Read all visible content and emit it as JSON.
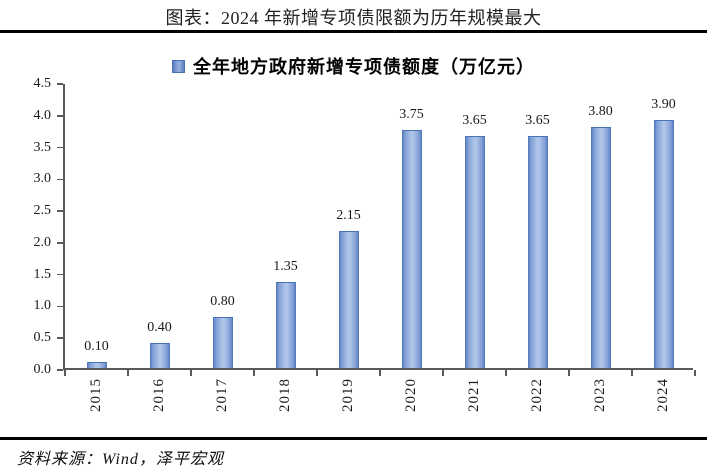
{
  "header": {
    "title": "图表：2024 年新增专项债限额为历年规模最大"
  },
  "chart_data": {
    "type": "bar",
    "title": "图表：2024 年新增专项债限额为历年规模最大",
    "legend": "全年地方政府新增专项债额度（万亿元）",
    "legend_position": "top",
    "categories": [
      "2015",
      "2016",
      "2017",
      "2018",
      "2019",
      "2020",
      "2021",
      "2022",
      "2023",
      "2024"
    ],
    "values": [
      0.1,
      0.4,
      0.8,
      1.35,
      2.15,
      3.75,
      3.65,
      3.65,
      3.8,
      3.9
    ],
    "value_labels": [
      "0.10",
      "0.40",
      "0.80",
      "1.35",
      "2.15",
      "3.75",
      "3.65",
      "3.65",
      "3.80",
      "3.90"
    ],
    "xlabel": "",
    "ylabel": "",
    "ylim": [
      0,
      4.5
    ],
    "ytick_step": 0.5,
    "grid": false
  },
  "footer": {
    "source": "资料来源：Wind，泽平宏观"
  },
  "colors": {
    "bar_edge": "#4c74b9",
    "bar_center": "#aec4e8",
    "axis": "#595959",
    "rule": "#000000",
    "text": "#1a1a1a"
  }
}
